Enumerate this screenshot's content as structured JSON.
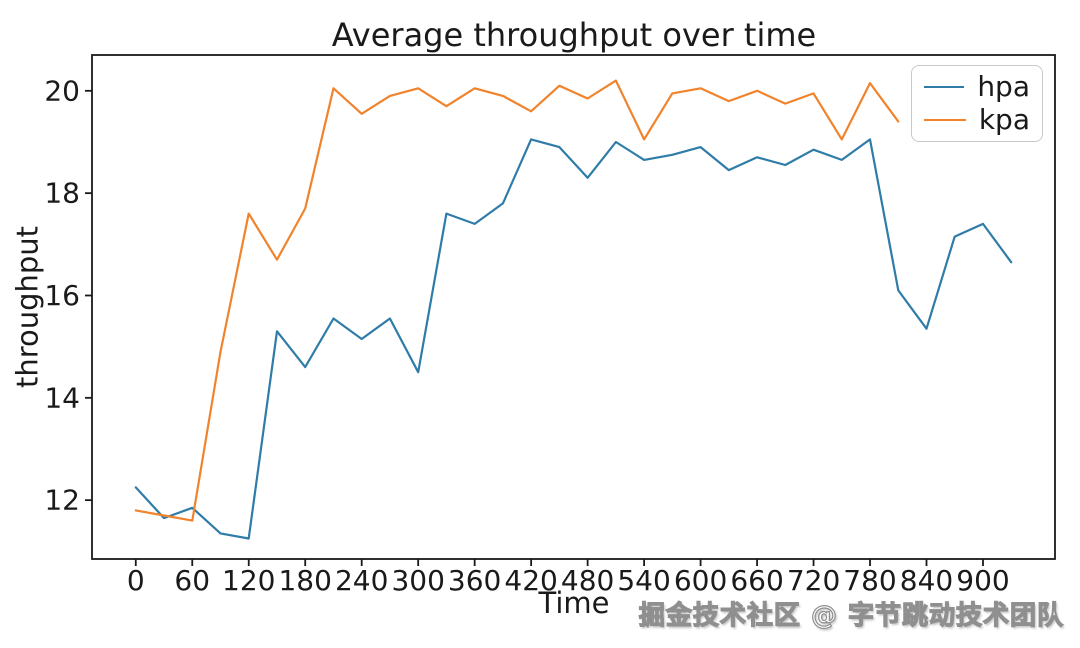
{
  "watermark": {
    "text": "掘金技术社区 @ 字节跳动技术团队"
  },
  "chart_data": {
    "type": "line",
    "title": "Average throughput over time",
    "xlabel": "Time",
    "ylabel": "throughput",
    "xlim": [
      -46.5,
      976.5
    ],
    "ylim": [
      10.85,
      20.7
    ],
    "x_ticks": [
      0,
      60,
      120,
      180,
      240,
      300,
      360,
      420,
      480,
      540,
      600,
      660,
      720,
      780,
      840,
      900
    ],
    "y_ticks": [
      12,
      14,
      16,
      18,
      20
    ],
    "grid": false,
    "legend": {
      "position": "upper right"
    },
    "series": [
      {
        "name": "hpa",
        "color": "#2f7ca8",
        "x": [
          0,
          30,
          60,
          90,
          120,
          150,
          180,
          210,
          240,
          270,
          300,
          330,
          360,
          390,
          420,
          450,
          480,
          510,
          540,
          570,
          600,
          630,
          660,
          690,
          720,
          750,
          780,
          810,
          840,
          870,
          900,
          930
        ],
        "values": [
          12.25,
          11.65,
          11.85,
          11.35,
          11.25,
          15.3,
          14.6,
          15.55,
          15.15,
          15.55,
          14.5,
          17.6,
          17.4,
          17.8,
          19.05,
          18.9,
          18.3,
          19.0,
          18.65,
          18.75,
          18.9,
          18.45,
          18.7,
          18.55,
          18.85,
          18.65,
          19.05,
          16.1,
          15.35,
          17.15,
          17.4,
          16.65
        ]
      },
      {
        "name": "kpa",
        "color": "#f0832c",
        "x": [
          0,
          30,
          60,
          90,
          120,
          150,
          180,
          210,
          240,
          270,
          300,
          330,
          360,
          390,
          420,
          450,
          480,
          510,
          540,
          570,
          600,
          630,
          660,
          690,
          720,
          750,
          780,
          810
        ],
        "values": [
          11.8,
          11.7,
          11.6,
          14.9,
          17.6,
          16.7,
          17.7,
          20.05,
          19.55,
          19.9,
          20.05,
          19.7,
          20.05,
          19.9,
          19.6,
          20.1,
          19.85,
          20.2,
          19.05,
          19.95,
          20.05,
          19.8,
          20.0,
          19.75,
          19.95,
          19.05,
          20.15,
          19.4
        ]
      }
    ]
  }
}
